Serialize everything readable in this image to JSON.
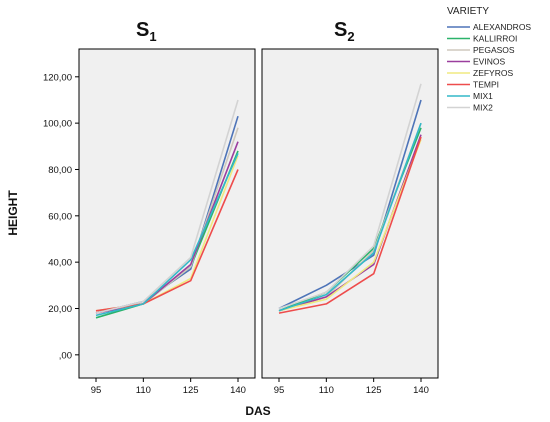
{
  "chart_data": {
    "type": "line",
    "ylabel": "HEIGHT",
    "xlabel": "DAS",
    "legend_title": "VARIETY",
    "legend_position": "top-right",
    "x": [
      "95",
      "110",
      "125",
      "140"
    ],
    "y_ticks": [
      ",00",
      "20,00",
      "40,00",
      "60,00",
      "80,00",
      "100,00",
      "120,00"
    ],
    "ylim": [
      -10,
      132
    ],
    "grid": false,
    "panels": [
      {
        "label": "S",
        "subscript": "1",
        "series": [
          {
            "name": "ALEXANDROS",
            "color": "#4e74b8",
            "values": [
              18,
              23,
              37,
              103
            ]
          },
          {
            "name": "KALLIRROI",
            "color": "#2bb36a",
            "values": [
              16,
              22,
              38,
              88
            ]
          },
          {
            "name": "PEGASOS",
            "color": "#cfc9bd",
            "values": [
              19,
              22,
              38,
              98
            ]
          },
          {
            "name": "EVINOS",
            "color": "#9b3e9e",
            "values": [
              18,
              22,
              39,
              92
            ]
          },
          {
            "name": "ZEFYROS",
            "color": "#f0ea80",
            "values": [
              19,
              22,
              33,
              86
            ]
          },
          {
            "name": "TEMPI",
            "color": "#ee4c4c",
            "values": [
              19,
              22,
              32,
              80
            ]
          },
          {
            "name": "MIX1",
            "color": "#33b8c8",
            "values": [
              17,
              22,
              41,
              87
            ]
          },
          {
            "name": "MIX2",
            "color": "#d3d3d3",
            "values": [
              18,
              23,
              42,
              110
            ]
          }
        ]
      },
      {
        "label": "S",
        "subscript": "2",
        "series": [
          {
            "name": "ALEXANDROS",
            "color": "#4e74b8",
            "values": [
              20,
              30,
              43,
              110
            ]
          },
          {
            "name": "KALLIRROI",
            "color": "#2bb36a",
            "values": [
              19,
              27,
              46,
              98
            ]
          },
          {
            "name": "PEGASOS",
            "color": "#cfc9bd",
            "values": [
              19,
              25,
              45,
              100
            ]
          },
          {
            "name": "EVINOS",
            "color": "#9b3e9e",
            "values": [
              19,
              25,
              39,
              95
            ]
          },
          {
            "name": "ZEFYROS",
            "color": "#f0ea80",
            "values": [
              19,
              24,
              40,
              93
            ]
          },
          {
            "name": "TEMPI",
            "color": "#ee4c4c",
            "values": [
              18,
              22,
              35,
              94
            ]
          },
          {
            "name": "MIX1",
            "color": "#33b8c8",
            "values": [
              19,
              26,
              44,
              100
            ]
          },
          {
            "name": "MIX2",
            "color": "#d3d3d3",
            "values": [
              20,
              27,
              47,
              117
            ]
          }
        ]
      }
    ]
  }
}
